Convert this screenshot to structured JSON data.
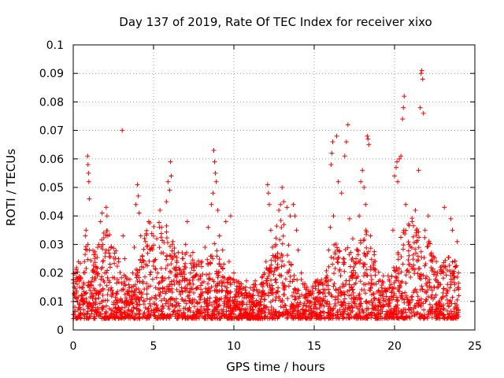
{
  "chart_data": {
    "type": "scatter",
    "title": "Day 137 of 2019, Rate Of TEC Index for receiver xixo",
    "xlabel": "GPS time / hours",
    "ylabel": "ROTI / TECUs",
    "xlim": [
      0,
      25
    ],
    "ylim": [
      0,
      0.1
    ],
    "x_ticks": [
      0,
      5,
      10,
      15,
      20,
      25
    ],
    "y_ticks": [
      0,
      0.01,
      0.02,
      0.03,
      0.04,
      0.05,
      0.06,
      0.07,
      0.08,
      0.09,
      0.1
    ],
    "x_tick_labels": [
      "0",
      "5",
      "10",
      "15",
      "20",
      "25"
    ],
    "y_tick_labels": [
      "0",
      "0.01",
      "0.02",
      "0.03",
      "0.04",
      "0.05",
      "0.06",
      "0.07",
      "0.08",
      "0.09",
      "0.1"
    ],
    "grid": true,
    "marker": "plus",
    "color": "#ff0000",
    "background": "[sampled scatter below]",
    "series": [
      {
        "points": [
          [
            0.0,
            0.01
          ],
          [
            0.1,
            0.008
          ],
          [
            0.2,
            0.013
          ],
          [
            0.3,
            0.007
          ],
          [
            0.4,
            0.015
          ],
          [
            0.5,
            0.012
          ],
          [
            0.6,
            0.009
          ],
          [
            0.7,
            0.024
          ],
          [
            0.75,
            0.033
          ],
          [
            0.8,
            0.035
          ],
          [
            0.85,
            0.028
          ],
          [
            0.9,
            0.061
          ],
          [
            0.92,
            0.058
          ],
          [
            0.95,
            0.055
          ],
          [
            0.97,
            0.052
          ],
          [
            1.0,
            0.046
          ],
          [
            1.05,
            0.016
          ],
          [
            1.2,
            0.011
          ],
          [
            1.4,
            0.009
          ],
          [
            1.5,
            0.019
          ],
          [
            1.6,
            0.03
          ],
          [
            1.7,
            0.038
          ],
          [
            1.8,
            0.041
          ],
          [
            1.9,
            0.034
          ],
          [
            2.0,
            0.027
          ],
          [
            2.05,
            0.043
          ],
          [
            2.1,
            0.04
          ],
          [
            2.15,
            0.033
          ],
          [
            2.2,
            0.028
          ],
          [
            2.3,
            0.022
          ],
          [
            2.4,
            0.014
          ],
          [
            2.6,
            0.009
          ],
          [
            2.8,
            0.008
          ],
          [
            3.0,
            0.01
          ],
          [
            3.05,
            0.07
          ],
          [
            3.1,
            0.033
          ],
          [
            3.2,
            0.025
          ],
          [
            3.3,
            0.018
          ],
          [
            3.5,
            0.012
          ],
          [
            3.7,
            0.02
          ],
          [
            3.8,
            0.029
          ],
          [
            3.9,
            0.044
          ],
          [
            4.0,
            0.051
          ],
          [
            4.05,
            0.047
          ],
          [
            4.1,
            0.041
          ],
          [
            4.2,
            0.033
          ],
          [
            4.3,
            0.026
          ],
          [
            4.5,
            0.031
          ],
          [
            4.7,
            0.038
          ],
          [
            4.9,
            0.029
          ],
          [
            5.0,
            0.024
          ],
          [
            5.2,
            0.032
          ],
          [
            5.4,
            0.042
          ],
          [
            5.5,
            0.036
          ],
          [
            5.6,
            0.027
          ],
          [
            5.8,
            0.045
          ],
          [
            5.9,
            0.052
          ],
          [
            6.0,
            0.049
          ],
          [
            6.05,
            0.059
          ],
          [
            6.1,
            0.054
          ],
          [
            6.2,
            0.031
          ],
          [
            6.4,
            0.022
          ],
          [
            6.6,
            0.016
          ],
          [
            6.8,
            0.025
          ],
          [
            7.0,
            0.03
          ],
          [
            7.1,
            0.038
          ],
          [
            7.3,
            0.02
          ],
          [
            7.5,
            0.013
          ],
          [
            7.7,
            0.023
          ],
          [
            7.9,
            0.018
          ],
          [
            8.0,
            0.024
          ],
          [
            8.2,
            0.029
          ],
          [
            8.4,
            0.036
          ],
          [
            8.6,
            0.044
          ],
          [
            8.7,
            0.048
          ],
          [
            8.75,
            0.063
          ],
          [
            8.8,
            0.059
          ],
          [
            8.85,
            0.055
          ],
          [
            8.9,
            0.052
          ],
          [
            9.0,
            0.042
          ],
          [
            9.1,
            0.033
          ],
          [
            9.3,
            0.028
          ],
          [
            9.5,
            0.038
          ],
          [
            9.7,
            0.024
          ],
          [
            9.8,
            0.04
          ],
          [
            10.0,
            0.02
          ],
          [
            10.2,
            0.013
          ],
          [
            10.5,
            0.01
          ],
          [
            10.8,
            0.009
          ],
          [
            11.0,
            0.012
          ],
          [
            11.2,
            0.01
          ],
          [
            11.5,
            0.013
          ],
          [
            11.7,
            0.016
          ],
          [
            11.9,
            0.02
          ],
          [
            12.0,
            0.024
          ],
          [
            12.1,
            0.051
          ],
          [
            12.15,
            0.048
          ],
          [
            12.2,
            0.044
          ],
          [
            12.3,
            0.035
          ],
          [
            12.4,
            0.029
          ],
          [
            12.6,
            0.03
          ],
          [
            12.8,
            0.042
          ],
          [
            12.9,
            0.044
          ],
          [
            13.0,
            0.05
          ],
          [
            13.1,
            0.045
          ],
          [
            13.3,
            0.043
          ],
          [
            13.5,
            0.04
          ],
          [
            13.7,
            0.044
          ],
          [
            13.8,
            0.04
          ],
          [
            13.9,
            0.035
          ],
          [
            14.0,
            0.028
          ],
          [
            14.2,
            0.02
          ],
          [
            14.4,
            0.015
          ],
          [
            14.7,
            0.012
          ],
          [
            15.0,
            0.009
          ],
          [
            15.3,
            0.01
          ],
          [
            15.6,
            0.013
          ],
          [
            15.8,
            0.019
          ],
          [
            15.9,
            0.028
          ],
          [
            16.0,
            0.036
          ],
          [
            16.05,
            0.058
          ],
          [
            16.1,
            0.062
          ],
          [
            16.15,
            0.066
          ],
          [
            16.2,
            0.04
          ],
          [
            16.4,
            0.068
          ],
          [
            16.5,
            0.052
          ],
          [
            16.7,
            0.048
          ],
          [
            16.9,
            0.061
          ],
          [
            17.0,
            0.066
          ],
          [
            17.1,
            0.072
          ],
          [
            17.2,
            0.039
          ],
          [
            17.4,
            0.032
          ],
          [
            17.6,
            0.025
          ],
          [
            17.8,
            0.04
          ],
          [
            17.9,
            0.052
          ],
          [
            18.0,
            0.056
          ],
          [
            18.1,
            0.05
          ],
          [
            18.2,
            0.044
          ],
          [
            18.3,
            0.068
          ],
          [
            18.35,
            0.067
          ],
          [
            18.4,
            0.065
          ],
          [
            18.5,
            0.033
          ],
          [
            18.8,
            0.021
          ],
          [
            19.0,
            0.017
          ],
          [
            19.3,
            0.013
          ],
          [
            19.6,
            0.019
          ],
          [
            19.9,
            0.035
          ],
          [
            20.0,
            0.054
          ],
          [
            20.1,
            0.057
          ],
          [
            20.15,
            0.059
          ],
          [
            20.2,
            0.052
          ],
          [
            20.3,
            0.06
          ],
          [
            20.4,
            0.061
          ],
          [
            20.5,
            0.074
          ],
          [
            20.55,
            0.078
          ],
          [
            20.6,
            0.082
          ],
          [
            20.7,
            0.044
          ],
          [
            20.9,
            0.03
          ],
          [
            21.1,
            0.038
          ],
          [
            21.3,
            0.042
          ],
          [
            21.5,
            0.056
          ],
          [
            21.6,
            0.078
          ],
          [
            21.65,
            0.09
          ],
          [
            21.7,
            0.091
          ],
          [
            21.75,
            0.088
          ],
          [
            21.8,
            0.076
          ],
          [
            21.9,
            0.035
          ],
          [
            22.1,
            0.04
          ],
          [
            22.3,
            0.027
          ],
          [
            22.6,
            0.024
          ],
          [
            22.9,
            0.021
          ],
          [
            23.1,
            0.043
          ],
          [
            23.3,
            0.016
          ],
          [
            23.5,
            0.039
          ],
          [
            23.6,
            0.035
          ],
          [
            23.8,
            0.022
          ],
          [
            23.9,
            0.031
          ],
          [
            24.0,
            0.012
          ]
        ]
      }
    ]
  }
}
